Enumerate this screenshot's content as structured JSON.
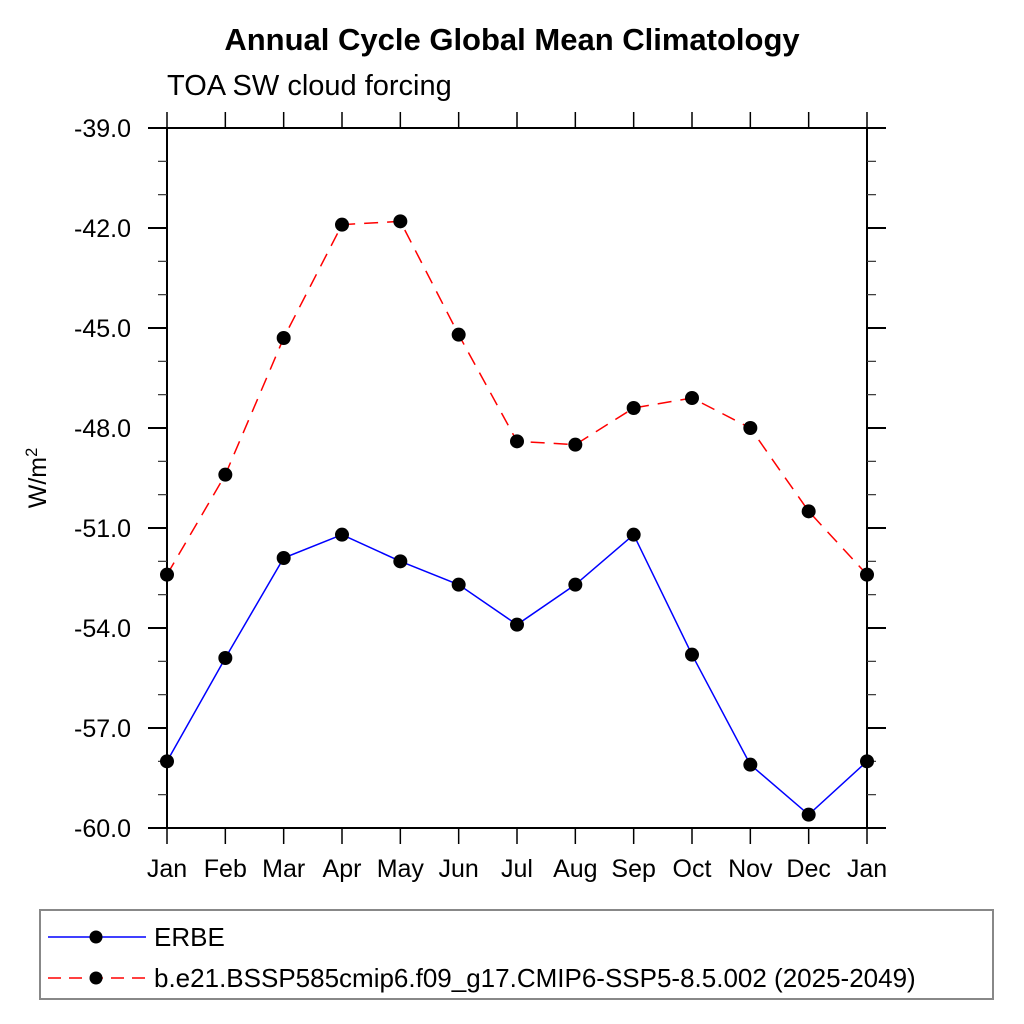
{
  "page": {
    "background": "#ffffff"
  },
  "chart_data": {
    "type": "line",
    "title": "Annual Cycle Global Mean Climatology",
    "subtitle": "TOA SW cloud forcing",
    "ylabel_base": "W/m",
    "ylabel_sup": "2",
    "categories": [
      "Jan",
      "Feb",
      "Mar",
      "Apr",
      "May",
      "Jun",
      "Jul",
      "Aug",
      "Sep",
      "Oct",
      "Nov",
      "Dec",
      "Jan"
    ],
    "series": [
      {
        "name": "ERBE",
        "color": "#0000ff",
        "line_style": "solid",
        "marker": "circle",
        "marker_color": "#000000",
        "values": [
          -58.0,
          -54.9,
          -51.9,
          -51.2,
          -52.0,
          -52.7,
          -53.9,
          -52.7,
          -51.2,
          -54.8,
          -58.1,
          -59.6,
          -58.0
        ]
      },
      {
        "name": "b.e21.BSSP585cmip6.f09_g17.CMIP6-SSP5-8.5.002 (2025-2049)",
        "color": "#ff0000",
        "line_style": "dashed",
        "marker": "circle",
        "marker_color": "#000000",
        "values": [
          -52.4,
          -49.4,
          -45.3,
          -41.9,
          -41.8,
          -45.2,
          -48.4,
          -48.5,
          -47.4,
          -47.1,
          -48.0,
          -50.5,
          -52.4
        ]
      }
    ],
    "ylim": [
      -60,
      -39
    ],
    "yticks_major": [
      -39,
      -42,
      -45,
      -48,
      -51,
      -54,
      -57,
      -60
    ],
    "ytick_labels": [
      "-39.0",
      "-42.0",
      "-45.0",
      "-48.0",
      "-51.0",
      "-54.0",
      "-57.0",
      "-60.0"
    ],
    "ytick_minor_step": 1,
    "grid": "off",
    "legend_position": "bottom",
    "axis_color": "#000000",
    "legend_border_color": "#888888"
  }
}
